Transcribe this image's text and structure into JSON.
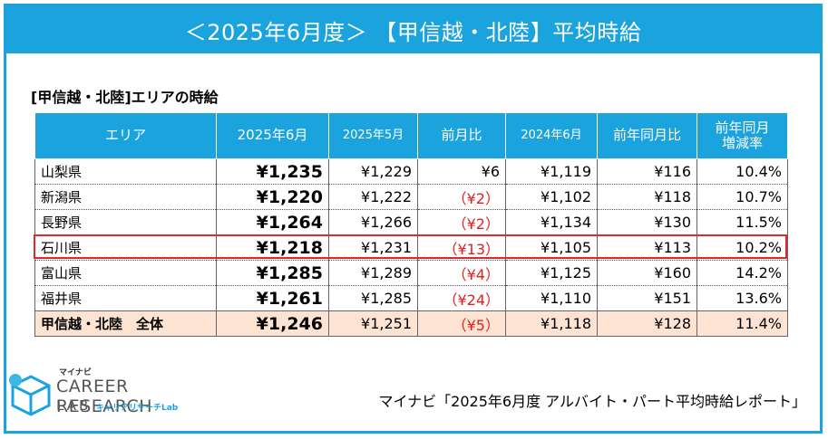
{
  "banner": {
    "title": "＜2025年6月度＞ 【甲信越・北陸】平均時給"
  },
  "subtitle": "[甲信越・北陸]エリアの時給",
  "table": {
    "headers": [
      "エリア",
      "2025年6月",
      "2025年5月",
      "前月比",
      "2024年6月",
      "前年同月比",
      "前年同月\n増減率"
    ],
    "rows": [
      {
        "area": "山梨県",
        "jun2025": "¥1,235",
        "may2025": "¥1,229",
        "mom": "¥6",
        "jun2024": "¥1,119",
        "yoy": "¥116",
        "rate": "10.4%",
        "mom_negative": false
      },
      {
        "area": "新潟県",
        "jun2025": "¥1,220",
        "may2025": "¥1,222",
        "mom": "（¥2）",
        "jun2024": "¥1,102",
        "yoy": "¥118",
        "rate": "10.7%",
        "mom_negative": true
      },
      {
        "area": "長野県",
        "jun2025": "¥1,264",
        "may2025": "¥1,266",
        "mom": "（¥2）",
        "jun2024": "¥1,134",
        "yoy": "¥130",
        "rate": "11.5%",
        "mom_negative": true
      },
      {
        "area": "石川県",
        "jun2025": "¥1,218",
        "may2025": "¥1,231",
        "mom": "（¥13）",
        "jun2024": "¥1,105",
        "yoy": "¥113",
        "rate": "10.2%",
        "mom_negative": true
      },
      {
        "area": "富山県",
        "jun2025": "¥1,285",
        "may2025": "¥1,289",
        "mom": "（¥4）",
        "jun2024": "¥1,125",
        "yoy": "¥160",
        "rate": "14.2%",
        "mom_negative": true
      },
      {
        "area": "福井県",
        "jun2025": "¥1,261",
        "may2025": "¥1,285",
        "mom": "（¥24）",
        "jun2024": "¥1,110",
        "yoy": "¥151",
        "rate": "13.6%",
        "mom_negative": true
      }
    ],
    "total": {
      "area": "甲信越・北陸　全体",
      "jun2025": "¥1,246",
      "may2025": "¥1,251",
      "mom": "（¥5）",
      "jun2024": "¥1,118",
      "yoy": "¥128",
      "rate": "11.4%"
    },
    "highlighted_row": "石川県"
  },
  "logo": {
    "small": "マイナビ",
    "main": "CAREER RESEARCH",
    "lab": "LAB",
    "sub": "キャリアリサーチLab"
  },
  "source": "マイナビ「2025年6月度 アルバイト・パート平均時給レポート」",
  "colors": {
    "accent": "#1ba3dd",
    "negative": "#e02020",
    "total_bg": "#fde3d2",
    "highlight": "#e02828"
  }
}
